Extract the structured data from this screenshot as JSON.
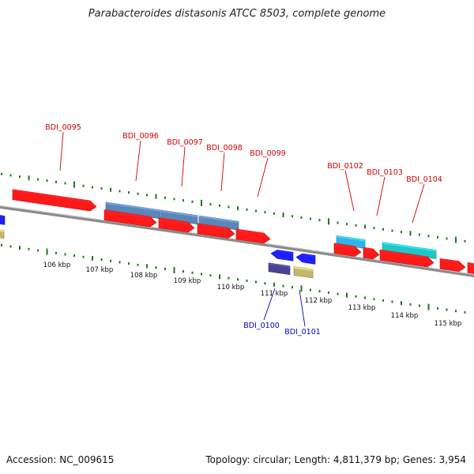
{
  "title": "Parabacteroides distasonis ATCC 8503, complete genome",
  "footer": {
    "accession": "Accession: NC_009615",
    "summary": "Topology: circular; Length: 4,811,379 bp; Genes: 3,954"
  },
  "colors": {
    "forward_gene": "#ff1a1a",
    "reverse_gene": "#1f1fff",
    "steelblue_feature": "#5b86b6",
    "lightblue_feature": "#2fb3ef",
    "cyan_feature": "#21c6c6",
    "navy_feature": "#4a4394",
    "khaki_feature": "#c3b76b",
    "forward_label": "#cc0000",
    "reverse_label": "#0000cc",
    "backbone": "#8a8a8a",
    "gc_ticks": "#1d7a1d"
  },
  "scale": {
    "unit": "kbp",
    "ticks": [
      "106 kbp",
      "107 kbp",
      "108 kbp",
      "109 kbp",
      "110 kbp",
      "111 kbp",
      "112 kbp",
      "113 kbp",
      "114 kbp",
      "115 kbp"
    ]
  },
  "genes": {
    "forward": [
      "BDI_0095",
      "BDI_0096",
      "BDI_0097",
      "BDI_0098",
      "BDI_0099",
      "BDI_0102",
      "BDI_0103",
      "BDI_0104"
    ],
    "reverse": [
      "BDI_0100",
      "BDI_0101"
    ]
  }
}
